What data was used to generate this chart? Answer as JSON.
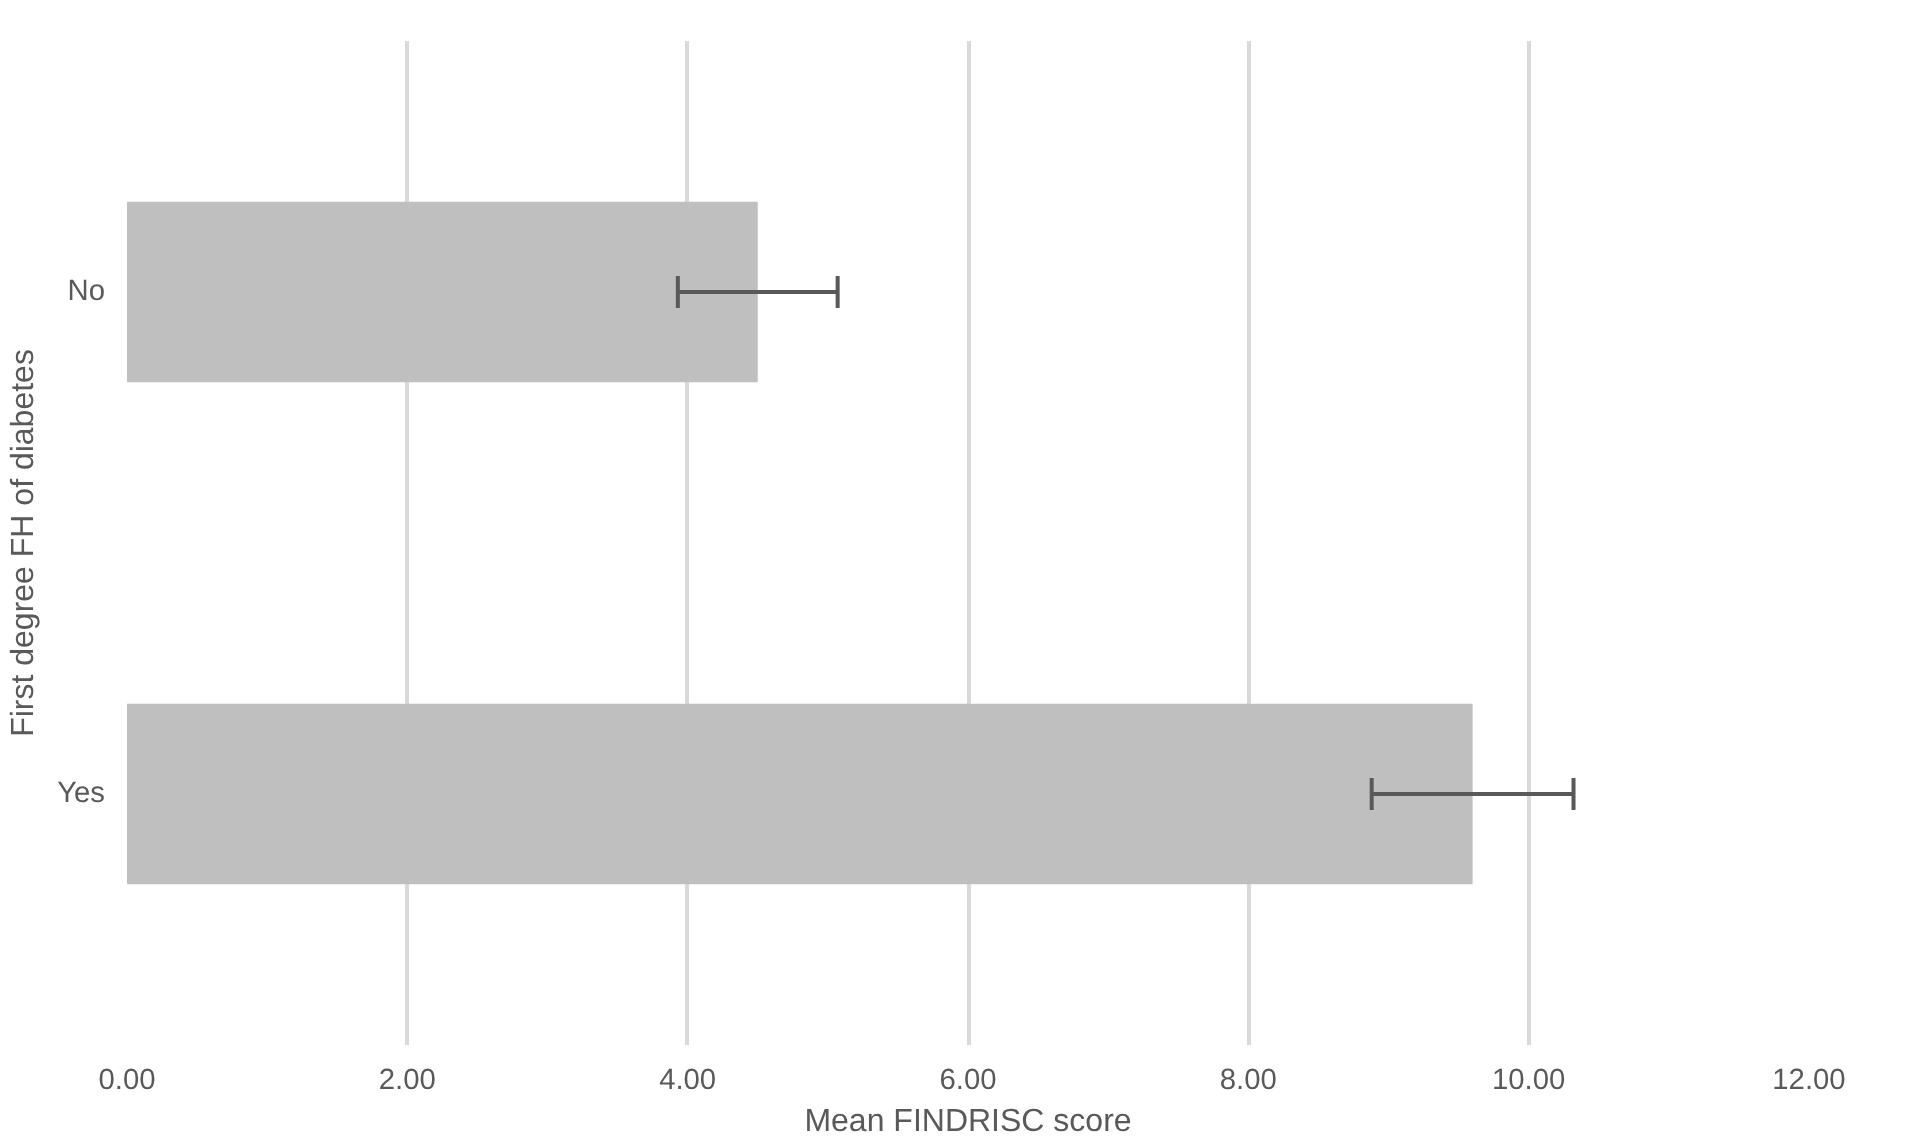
{
  "chart_data": {
    "type": "bar",
    "orientation": "horizontal",
    "xlabel": "Mean FINDRISC score",
    "ylabel": "First degree FH of diabetes",
    "categories": [
      "No",
      "Yes"
    ],
    "values": [
      4.5,
      9.6
    ],
    "errors": [
      0.57,
      0.72
    ],
    "color": "#bfbfbf",
    "xlim": [
      0,
      12
    ],
    "xticks": [
      {
        "value": 0,
        "label": "0.00"
      },
      {
        "value": 2,
        "label": "2.00"
      },
      {
        "value": 4,
        "label": "4.00"
      },
      {
        "value": 6,
        "label": "6.00"
      },
      {
        "value": 8,
        "label": "8.00"
      },
      {
        "value": 10,
        "label": "10.00"
      },
      {
        "value": 12,
        "label": "12.00"
      }
    ],
    "grid": "x"
  }
}
